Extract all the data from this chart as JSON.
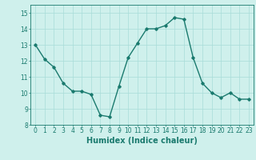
{
  "x": [
    0,
    1,
    2,
    3,
    4,
    5,
    6,
    7,
    8,
    9,
    10,
    11,
    12,
    13,
    14,
    15,
    16,
    17,
    18,
    19,
    20,
    21,
    22,
    23
  ],
  "y": [
    13.0,
    12.1,
    11.6,
    10.6,
    10.1,
    10.1,
    9.9,
    8.6,
    8.5,
    10.4,
    12.2,
    13.1,
    14.0,
    14.0,
    14.2,
    14.7,
    14.6,
    12.2,
    10.6,
    10.0,
    9.7,
    10.0,
    9.6,
    9.6
  ],
  "line_color": "#1a7a6e",
  "marker": "D",
  "marker_size": 1.8,
  "line_width": 1.0,
  "xlabel": "Humidex (Indice chaleur)",
  "xlabel_fontsize": 7,
  "xlabel_fontweight": "bold",
  "bg_color": "#cff0ec",
  "grid_color": "#a8ddd8",
  "tick_color": "#1a7a6e",
  "xlim": [
    -0.5,
    23.5
  ],
  "ylim": [
    8,
    15.5
  ],
  "yticks": [
    8,
    9,
    10,
    11,
    12,
    13,
    14,
    15
  ],
  "xticks": [
    0,
    1,
    2,
    3,
    4,
    5,
    6,
    7,
    8,
    9,
    10,
    11,
    12,
    13,
    14,
    15,
    16,
    17,
    18,
    19,
    20,
    21,
    22,
    23
  ],
  "xtick_labels": [
    "0",
    "1",
    "2",
    "3",
    "4",
    "5",
    "6",
    "7",
    "8",
    "9",
    "10",
    "11",
    "12",
    "13",
    "14",
    "15",
    "16",
    "17",
    "18",
    "19",
    "20",
    "21",
    "22",
    "23"
  ],
  "tick_fontsize": 5.5,
  "spine_color": "#1a7a6e"
}
